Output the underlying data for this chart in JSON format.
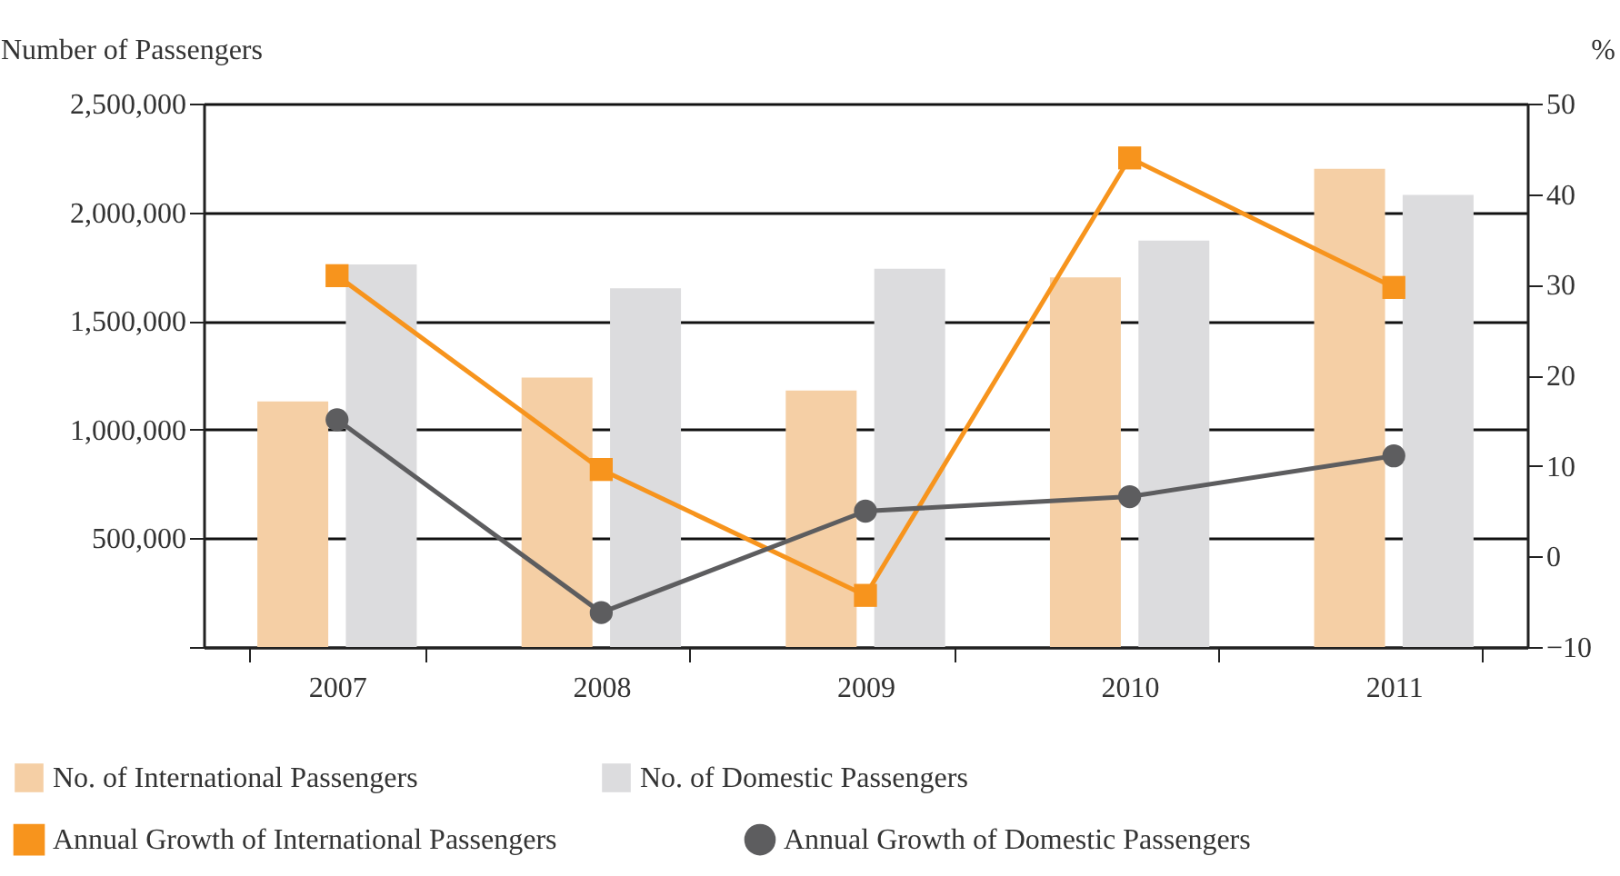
{
  "chart_data": {
    "type": "bar",
    "ylabel": "Number of Passengers",
    "y2label": "%",
    "categories": [
      "2007",
      "2008",
      "2009",
      "2010",
      "2011"
    ],
    "series": [
      {
        "name": "No. of International Passengers",
        "color": "#f5cfa5",
        "values": [
          1130000,
          1240000,
          1180000,
          1700000,
          2200000
        ]
      },
      {
        "name": "No. of Domestic Passengers",
        "color": "#dcdcde",
        "values": [
          1760000,
          1650000,
          1740000,
          1870000,
          2080000
        ]
      },
      {
        "name": "Annual Growth of International Passengers",
        "type": "line",
        "axis": "y2",
        "marker": "square",
        "color": "#f7941d",
        "values": [
          31.0,
          9.6,
          -4.3,
          44.0,
          29.7
        ]
      },
      {
        "name": "Annual Growth of Domestic Passengers",
        "type": "line",
        "axis": "y2",
        "marker": "circle",
        "color": "#5d5d5f",
        "values": [
          15.1,
          -6.2,
          5.0,
          6.6,
          11.1
        ]
      }
    ],
    "ylim": [
      0,
      2500000
    ],
    "yticks": [
      {
        "value": 0,
        "label": null
      },
      {
        "value": 500000,
        "label": "500,000"
      },
      {
        "value": 1000000,
        "label": "1,000,000"
      },
      {
        "value": 1500000,
        "label": "1,500,000"
      },
      {
        "value": 2000000,
        "label": "2,000,000"
      },
      {
        "value": 2500000,
        "label": "2,500,000"
      }
    ],
    "y2lim": [
      -10,
      50
    ],
    "y2ticks": [
      -10,
      0,
      10,
      20,
      30,
      40,
      50
    ],
    "grid": "y",
    "legend": "bottom"
  }
}
